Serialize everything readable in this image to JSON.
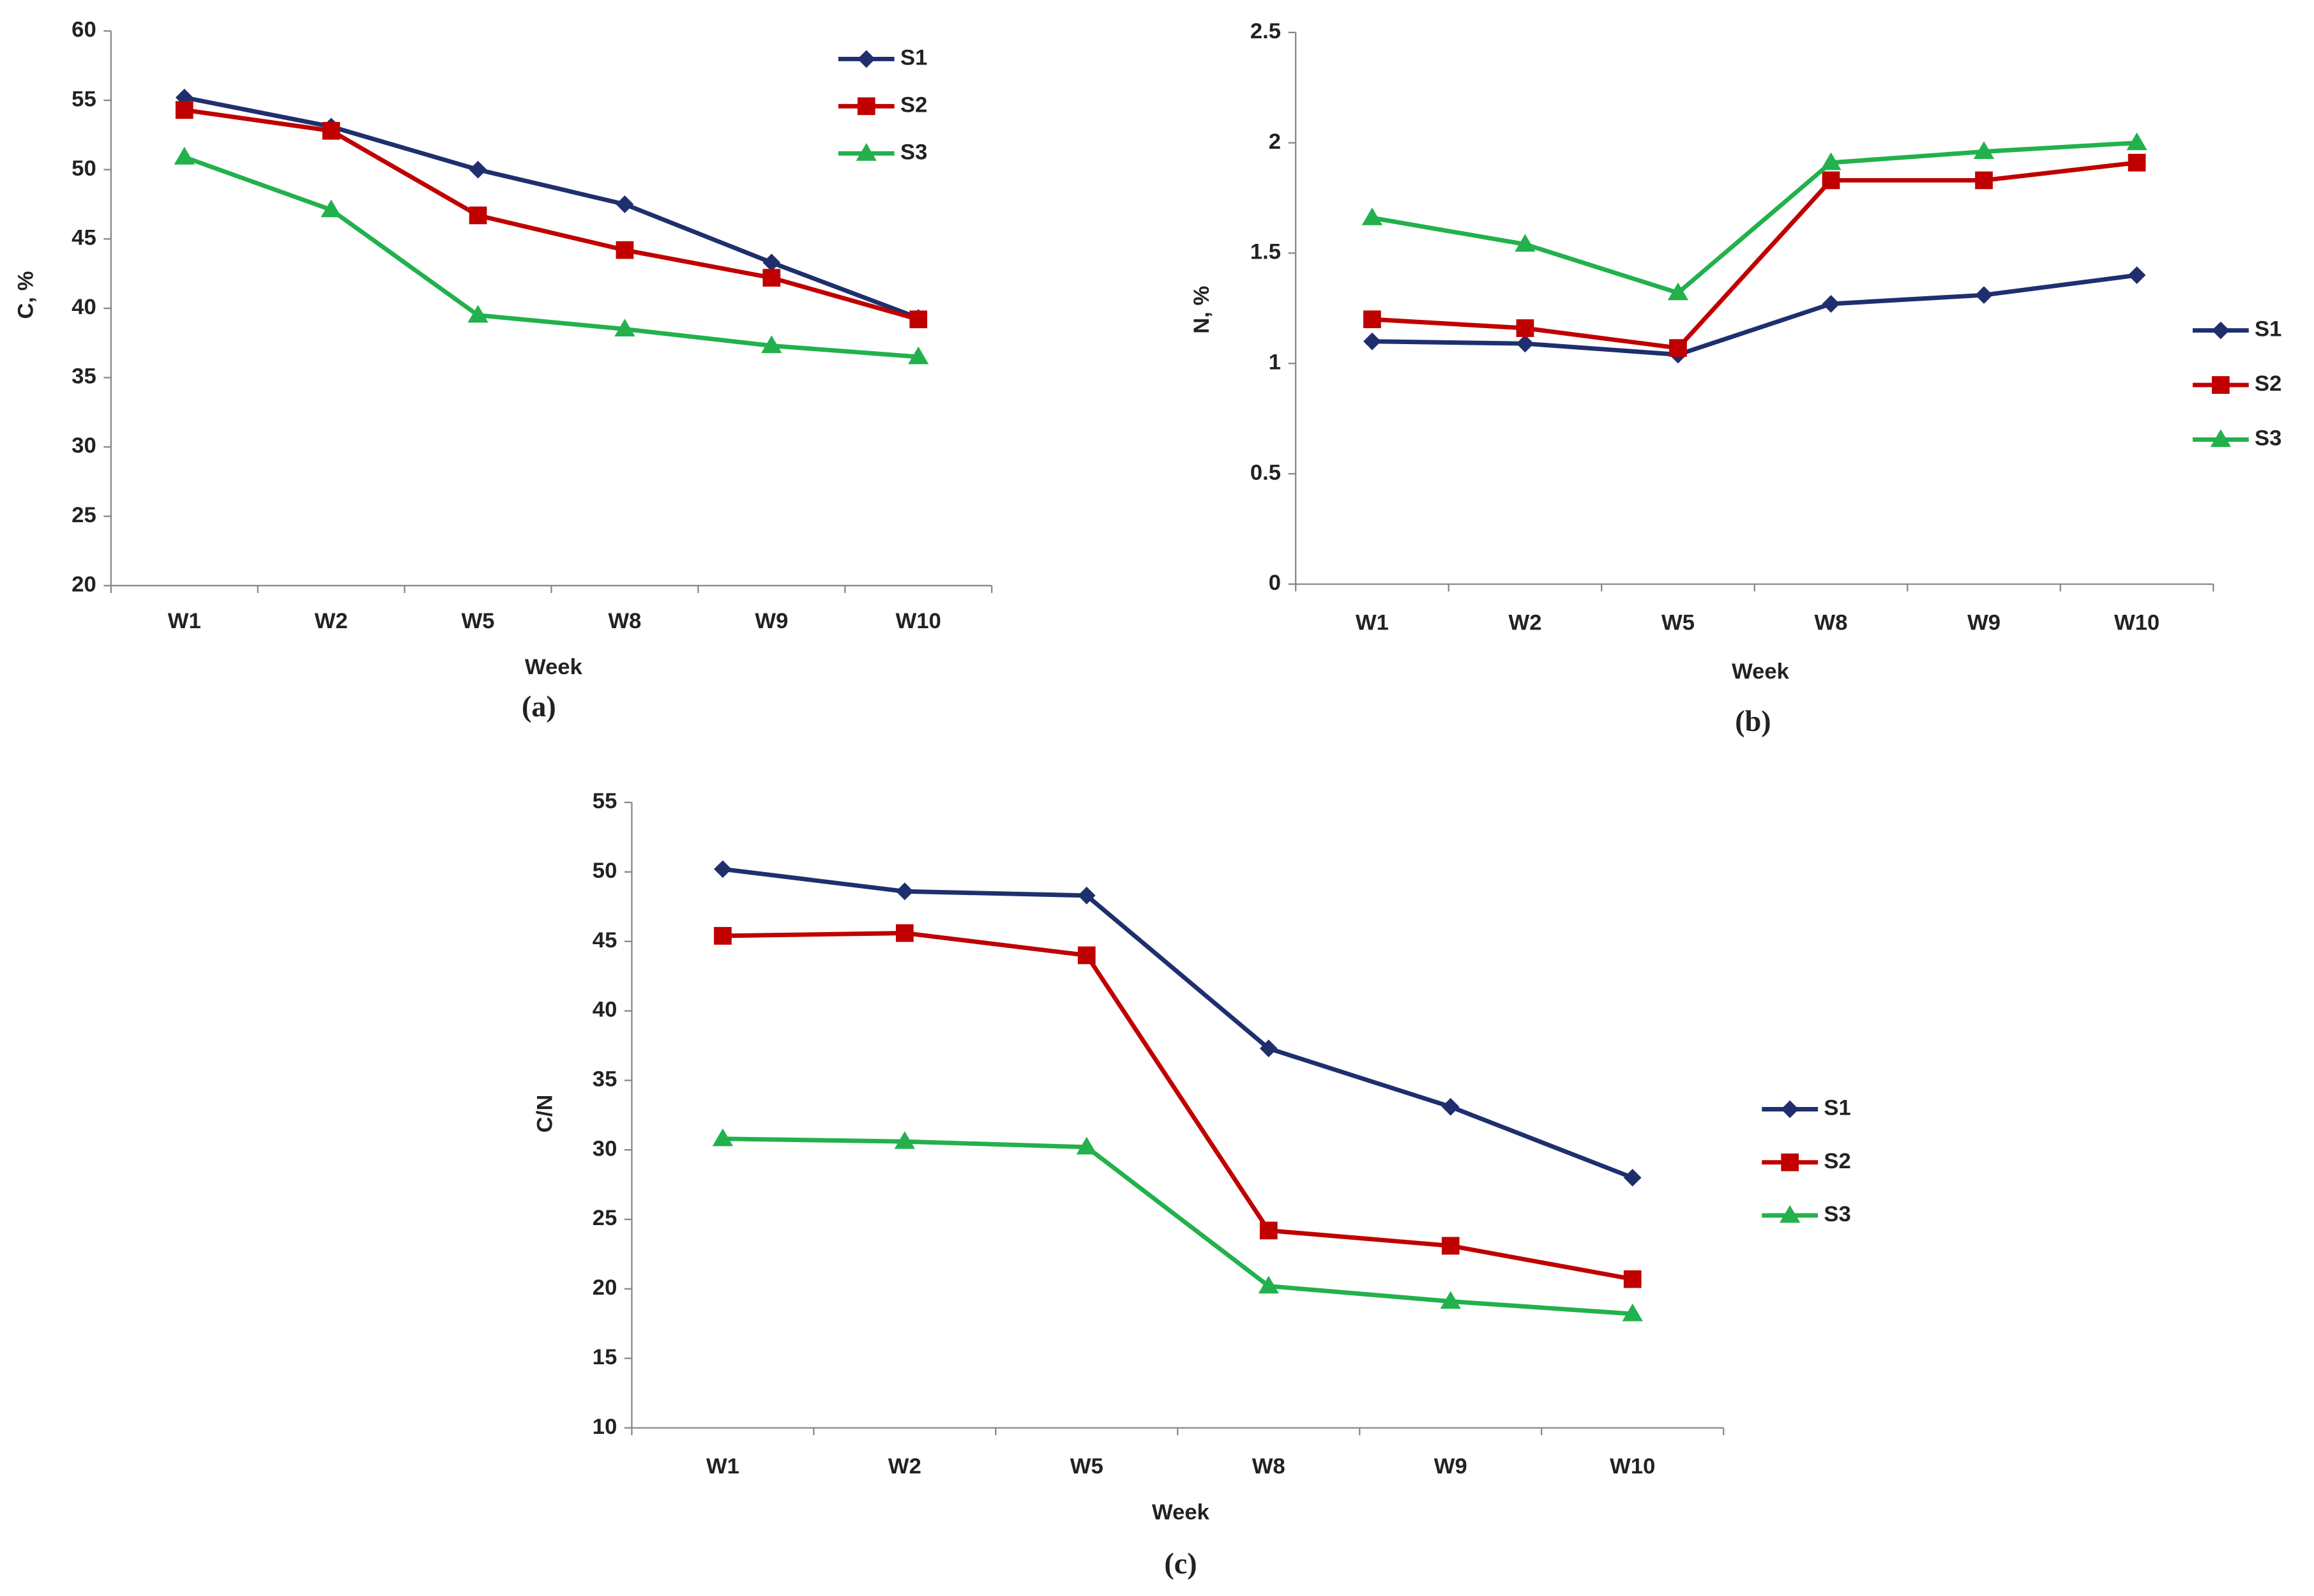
{
  "chart_data": [
    {
      "type": "line",
      "y_label": "C, %",
      "x_label": "Week",
      "caption": "(a)",
      "legend": "upper right",
      "categories": [
        "W1",
        "W2",
        "W5",
        "W8",
        "W9",
        "W10"
      ],
      "series": [
        {
          "name": "S1",
          "color": "#1f2f6e",
          "marker": "diamond",
          "values": [
            55.2,
            53.1,
            50.0,
            47.5,
            43.3,
            39.3
          ]
        },
        {
          "name": "S2",
          "color": "#c00000",
          "marker": "square",
          "values": [
            54.3,
            52.8,
            46.7,
            44.2,
            42.2,
            39.2
          ]
        },
        {
          "name": "S3",
          "color": "#22b14c",
          "marker": "triangle",
          "values": [
            50.9,
            47.1,
            39.5,
            38.5,
            37.3,
            36.5
          ]
        }
      ],
      "ylim": [
        20,
        60
      ],
      "yticks": [
        20,
        25,
        30,
        35,
        40,
        45,
        50,
        55,
        60
      ]
    },
    {
      "type": "line",
      "y_label": "N, %",
      "x_label": "Week",
      "caption": "(b)",
      "legend": "right",
      "categories": [
        "W1",
        "W2",
        "W5",
        "W8",
        "W9",
        "W10"
      ],
      "series": [
        {
          "name": "S1",
          "color": "#1f2f6e",
          "marker": "diamond",
          "values": [
            1.1,
            1.09,
            1.04,
            1.27,
            1.31,
            1.4
          ]
        },
        {
          "name": "S2",
          "color": "#c00000",
          "marker": "square",
          "values": [
            1.2,
            1.16,
            1.07,
            1.83,
            1.83,
            1.91
          ]
        },
        {
          "name": "S3",
          "color": "#22b14c",
          "marker": "triangle",
          "values": [
            1.66,
            1.54,
            1.32,
            1.91,
            1.96,
            2.0
          ]
        }
      ],
      "ylim": [
        0,
        2.5
      ],
      "yticks": [
        0,
        0.5,
        1,
        1.5,
        2,
        2.5
      ]
    },
    {
      "type": "line",
      "y_label": "C/N",
      "x_label": "Week",
      "caption": "(c)",
      "legend": "right",
      "categories": [
        "W1",
        "W2",
        "W5",
        "W8",
        "W9",
        "W10"
      ],
      "series": [
        {
          "name": "S1",
          "color": "#1f2f6e",
          "marker": "diamond",
          "values": [
            50.2,
            48.6,
            48.3,
            37.3,
            33.1,
            28.0
          ]
        },
        {
          "name": "S2",
          "color": "#c00000",
          "marker": "square",
          "values": [
            45.4,
            45.6,
            44.0,
            24.2,
            23.1,
            20.7
          ]
        },
        {
          "name": "S3",
          "color": "#22b14c",
          "marker": "triangle",
          "values": [
            30.8,
            30.6,
            30.2,
            20.2,
            19.1,
            18.2
          ]
        }
      ],
      "ylim": [
        10,
        55
      ],
      "yticks": [
        10,
        15,
        20,
        25,
        30,
        35,
        40,
        45,
        50,
        55
      ]
    }
  ]
}
